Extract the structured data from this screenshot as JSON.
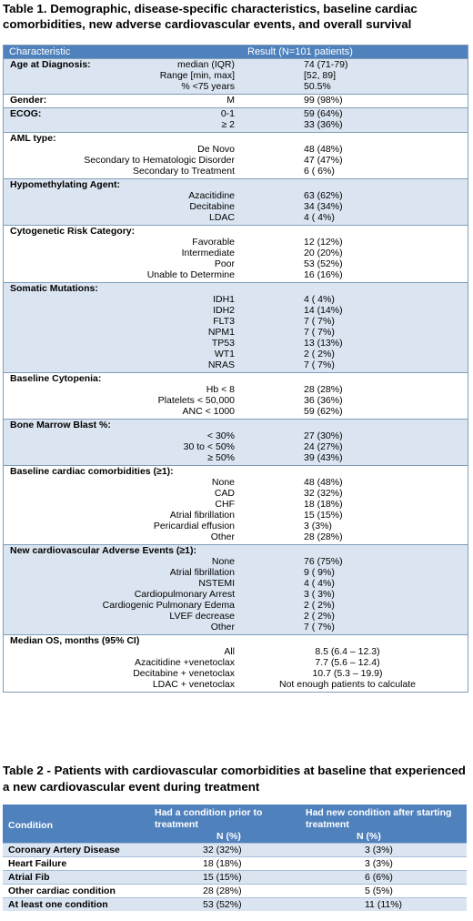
{
  "table1": {
    "title": "Table 1. Demographic, disease-specific characteristics, baseline cardiac comorbidities, new adverse cardiovascular events, and overall survival",
    "col_header_1": "Characteristic",
    "col_header_2": "Result (N=101 patients)",
    "sections": [
      {
        "header": "Age at Diagnosis:",
        "rows": [
          {
            "label": "median (IQR)",
            "value": "74 (71-79)"
          },
          {
            "label": "Range [min, max]",
            "value": "[52, 89]"
          },
          {
            "label": "% <75 years",
            "value": "50.5%"
          }
        ]
      },
      {
        "header": "Gender:",
        "rows": [
          {
            "label": "M",
            "value": "99 (98%)"
          }
        ]
      },
      {
        "header": "ECOG:",
        "rows": [
          {
            "label": "0-1",
            "value": "59 (64%)"
          },
          {
            "label": "≥ 2",
            "value": "33 (36%)"
          }
        ]
      },
      {
        "header": "AML type:",
        "rows": [
          {
            "label": "De Novo",
            "value": "48 (48%)"
          },
          {
            "label": "Secondary to Hematologic Disorder",
            "value": "47 (47%)"
          },
          {
            "label": "Secondary to Treatment",
            "value": "6 (  6%)"
          }
        ]
      },
      {
        "header": "Hypomethylating Agent:",
        "rows": [
          {
            "label": "Azacitidine",
            "value": "63 (62%)"
          },
          {
            "label": "Decitabine",
            "value": "34 (34%)"
          },
          {
            "label": "LDAC",
            "value": "4 (  4%)"
          }
        ]
      },
      {
        "header": "Cytogenetic Risk Category:",
        "rows": [
          {
            "label": "Favorable",
            "value": "12 (12%)"
          },
          {
            "label": "Intermediate",
            "value": "20 (20%)"
          },
          {
            "label": "Poor",
            "value": "53 (52%)"
          },
          {
            "label": "Unable to Determine",
            "value": "16 (16%)"
          }
        ]
      },
      {
        "header": "Somatic Mutations:",
        "rows": [
          {
            "label": "IDH1",
            "value": "4 (  4%)"
          },
          {
            "label": "IDH2",
            "value": "14 (14%)"
          },
          {
            "label": "FLT3",
            "value": "7 (  7%)"
          },
          {
            "label": "NPM1",
            "value": "7 (  7%)"
          },
          {
            "label": "TP53",
            "value": "13 (13%)"
          },
          {
            "label": "WT1",
            "value": "2 (  2%)"
          },
          {
            "label": "NRAS",
            "value": "7 (  7%)"
          }
        ]
      },
      {
        "header": "Baseline Cytopenia:",
        "rows": [
          {
            "label": "Hb < 8",
            "value": "28 (28%)"
          },
          {
            "label": "Platelets < 50,000",
            "value": "36 (36%)"
          },
          {
            "label": "ANC <  1000",
            "value": "59 (62%)"
          }
        ]
      },
      {
        "header": "Bone Marrow Blast %:",
        "rows": [
          {
            "label": "< 30%",
            "value": "27 (30%)"
          },
          {
            "label": "30 to < 50%",
            "value": "24 (27%)"
          },
          {
            "label": "≥ 50%",
            "value": "39 (43%)"
          }
        ]
      },
      {
        "header": "Baseline cardiac comorbidities (≥1):",
        "rows": [
          {
            "label": "None",
            "value": "48 (48%)"
          },
          {
            "label": "CAD",
            "value": "32 (32%)"
          },
          {
            "label": "CHF",
            "value": "18 (18%)"
          },
          {
            "label": "Atrial fibrillation",
            "value": "15 (15%)"
          },
          {
            "label": "Pericardial effusion",
            "value": "3 (3%)"
          },
          {
            "label": "Other",
            "value": "28 (28%)"
          }
        ]
      },
      {
        "header": "New cardiovascular Adverse Events (≥1):",
        "rows": [
          {
            "label": "None",
            "value": "76 (75%)"
          },
          {
            "label": "Atrial fibrillation",
            "value": "9 (  9%)"
          },
          {
            "label": "NSTEMI",
            "value": "4 (  4%)"
          },
          {
            "label": "Cardiopulmonary Arrest",
            "value": "3 (  3%)"
          },
          {
            "label": "Cardiogenic Pulmonary Edema",
            "value": "2 (  2%)"
          },
          {
            "label": "LVEF decrease",
            "value": "2 (  2%)"
          },
          {
            "label": "Other",
            "value": "7 (  7%)"
          }
        ]
      },
      {
        "header": "Median OS, months (95% CI)",
        "rows": [
          {
            "label": "All",
            "value": "8.5 (6.4 – 12.3)"
          },
          {
            "label": "Azacitidine +venetoclax",
            "value": "7.7 (5.6 – 12.4)"
          },
          {
            "label": "Decitabine + venetoclax",
            "value": "10.7 (5.3 – 19.9)"
          },
          {
            "label": "LDAC + venetoclax",
            "value": "Not enough patients to calculate"
          }
        ]
      }
    ]
  },
  "table2": {
    "title": "Table 2 -  Patients with cardiovascular comorbidities at baseline that experienced  a new cardiovascular event during treatment",
    "header_condition": "Condition",
    "header_prior": "Had a condition prior to treatment",
    "header_prior_sub": "N (%)",
    "header_new": "Had new condition after starting treatment",
    "header_new_sub": "N (%)",
    "rows": [
      {
        "condition": "Coronary Artery Disease",
        "prior": "32 (32%)",
        "new": "3 (3%)"
      },
      {
        "condition": "Heart Failure",
        "prior": "18 (18%)",
        "new": "3 (3%)"
      },
      {
        "condition": "Atrial Fib",
        "prior": "15 (15%)",
        "new": "6 (6%)"
      },
      {
        "condition": "Other cardiac condition",
        "prior": "28 (28%)",
        "new": "5 (5%)"
      },
      {
        "condition": "At least one condition",
        "prior": "53 (52%)",
        "new": "11 (11%)"
      }
    ]
  }
}
